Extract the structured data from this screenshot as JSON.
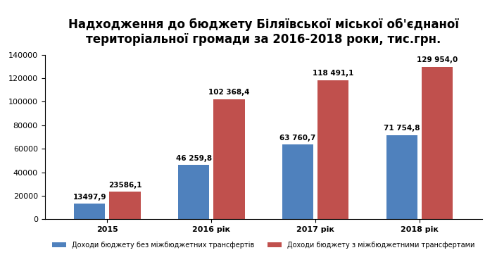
{
  "chart_data": {
    "type": "bar",
    "title": "Надходження до бюджету Біляївської міської об'єднаної територіальної громади за 2016-2018 роки, тис.грн.",
    "categories": [
      "2015",
      "2016 рік",
      "2017 рік",
      "2018 рік"
    ],
    "series": [
      {
        "name": "Доходи бюджету без міжбюджетних трансфертів",
        "color": "#4f81bd",
        "values": [
          13497.9,
          46259.8,
          63760.7,
          71754.8
        ],
        "value_labels": [
          "13497,9",
          "46 259,8",
          "63 760,7",
          "71 754,8"
        ]
      },
      {
        "name": "Доходи бюджету з міжбюджетними трансфертами",
        "color": "#c0504d",
        "values": [
          23586.1,
          102368.4,
          118491.1,
          129954.0
        ],
        "value_labels": [
          "23586,1",
          "102 368,4",
          "118 491,1",
          "129 954,0"
        ]
      }
    ],
    "ylim": [
      0,
      140000
    ],
    "yticks": [
      0,
      20000,
      40000,
      60000,
      80000,
      100000,
      120000,
      140000
    ],
    "grid": false,
    "data_labels": true,
    "legend": "bottom"
  }
}
